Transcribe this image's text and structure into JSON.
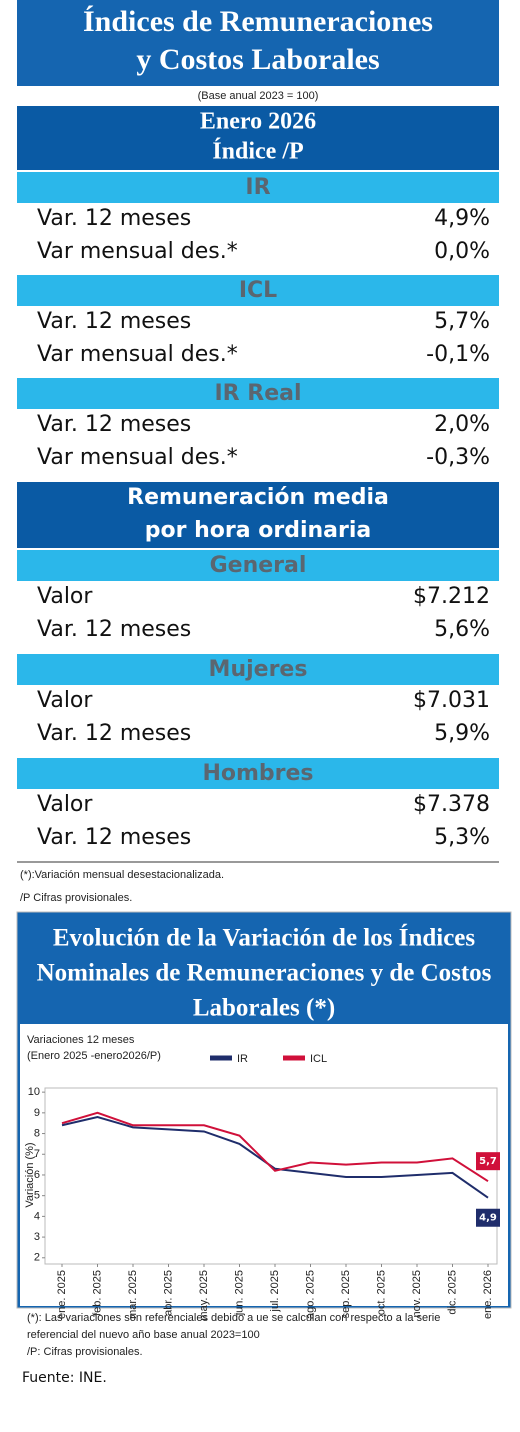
{
  "header": {
    "title_lines": [
      "Índices de Remuneraciones",
      "y Costos Laborales"
    ],
    "base": "(Base anual 2023 = 100)",
    "period": "Enero 2026",
    "index": "Índice /P"
  },
  "sections": [
    {
      "heading": "IR",
      "rows": [
        [
          "Var. 12 meses",
          "4,9%"
        ],
        [
          "Var mensual des.*",
          "0,0%"
        ]
      ]
    },
    {
      "heading": "ICL",
      "rows": [
        [
          "Var. 12 meses",
          "5,7%"
        ],
        [
          "Var mensual des.*",
          "-0,1%"
        ]
      ]
    },
    {
      "heading": "IR Real",
      "rows": [
        [
          "Var. 12 meses",
          "2,0%"
        ],
        [
          "Var mensual des.*",
          "-0,3%"
        ]
      ]
    }
  ],
  "group": {
    "title_lines": [
      "Remuneración media",
      "por hora ordinaria"
    ],
    "sections": [
      {
        "heading": "General",
        "rows": [
          [
            "Valor",
            "$7.212"
          ],
          [
            "Var. 12 meses",
            "5,6%"
          ]
        ]
      },
      {
        "heading": "Mujeres",
        "rows": [
          [
            "Valor",
            "$7.031"
          ],
          [
            "Var. 12 meses",
            "5,9%"
          ]
        ]
      },
      {
        "heading": "Hombres",
        "rows": [
          [
            "Valor",
            "$7.378"
          ],
          [
            "Var. 12 meses",
            "5,3%"
          ]
        ]
      }
    ]
  },
  "notes": [
    "(*):Variación mensual desestacionalizada.",
    "/P Cifras provisionales."
  ],
  "chart_data": {
    "type": "line",
    "title_lines": [
      "Evolución de la Variación de los Índices",
      "Nominales de Remuneraciones y de Costos",
      "Laborales (*)"
    ],
    "subtitle_lines": [
      "Variaciones 12 meses",
      "(Enero 2025 -enero2026/P)"
    ],
    "y_label": "Variación (%)",
    "categories": [
      "ene. 2025",
      "feb. 2025",
      "mar. 2025",
      "abr. 2025",
      "may. 2025",
      "jun. 2025",
      "jul. 2025",
      "ago. 2025",
      "sep. 2025",
      "oct. 2025",
      "nov. 2025",
      "dic. 2025",
      "ene. 2026"
    ],
    "series": [
      {
        "name": "IR",
        "color": "#1f2d6b",
        "values": [
          8.4,
          8.8,
          8.3,
          8.2,
          8.1,
          7.5,
          6.3,
          6.1,
          5.9,
          5.9,
          6.0,
          6.1,
          4.9
        ],
        "value_labels": [
          null,
          null,
          null,
          null,
          null,
          null,
          null,
          null,
          null,
          null,
          null,
          null,
          "4,9"
        ]
      },
      {
        "name": "ICL",
        "color": "#d0103a",
        "values": [
          8.5,
          9.0,
          8.4,
          8.4,
          8.4,
          7.9,
          6.2,
          6.6,
          6.5,
          6.6,
          6.6,
          6.8,
          5.7
        ],
        "value_labels": [
          null,
          null,
          null,
          null,
          null,
          null,
          null,
          null,
          null,
          null,
          null,
          null,
          "5,7"
        ]
      }
    ],
    "ylim": [
      1.7,
      10.2
    ],
    "yticks": [
      2,
      3,
      4,
      5,
      6,
      7,
      8,
      9,
      10
    ]
  },
  "footnotes": [
    "(*): Las variaciones son referenciales debido a ue se calculan con respecto a la serie",
    "referencial del nuevo año base anual 2023=100",
    "/P: Cifras provisionales."
  ],
  "source": "Fuente: INE."
}
